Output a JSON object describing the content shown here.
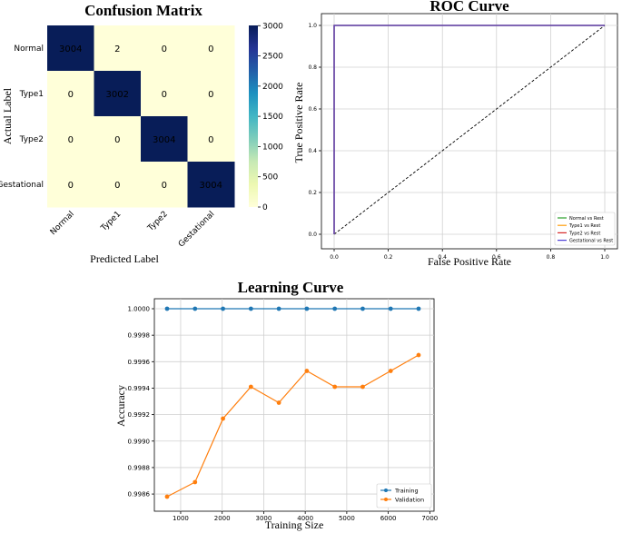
{
  "chart_data": [
    {
      "type": "heatmap",
      "title": "Confusion Matrix",
      "xlabel": "Predicted Label",
      "ylabel": "Actual Label",
      "x_categories": [
        "Normal",
        "Type1",
        "Type2",
        "Gestational"
      ],
      "y_categories": [
        "Normal",
        "Type1",
        "Type2",
        "Gestational"
      ],
      "cell_labels": [
        [
          "3004",
          "2",
          "0",
          "0"
        ],
        [
          "0",
          "3002",
          "0",
          "0"
        ],
        [
          "0",
          "0",
          "3004",
          "0"
        ],
        [
          "0",
          "0",
          "0",
          "3004"
        ]
      ],
      "values": [
        [
          3004,
          2,
          0,
          0
        ],
        [
          0,
          3002,
          0,
          0
        ],
        [
          0,
          0,
          3004,
          0
        ],
        [
          0,
          0,
          0,
          3004
        ]
      ],
      "colorbar": {
        "min": 0,
        "max": 3004,
        "ticks": [
          "0",
          "500",
          "1000",
          "1500",
          "2000",
          "2500",
          "3000"
        ],
        "colormap": "YlGnBu"
      },
      "colors": {
        "low": "#ffffd9",
        "high": "#081d58"
      }
    },
    {
      "type": "line",
      "title": "ROC Curve",
      "xlabel": "False Positive Rate",
      "ylabel": "True Positive Rate",
      "xlim": [
        0,
        1
      ],
      "ylim": [
        0,
        1
      ],
      "xticks": [
        "0.0",
        "0.2",
        "0.4",
        "0.6",
        "0.8",
        "1.0"
      ],
      "yticks": [
        "0.0",
        "0.2",
        "0.4",
        "0.6",
        "0.8",
        "1.0"
      ],
      "grid": true,
      "legend": "bottom-right",
      "series": [
        {
          "name": "Normal vs Rest",
          "color": "#2ca02c",
          "x": [
            0,
            0,
            1
          ],
          "y": [
            0,
            1,
            1
          ]
        },
        {
          "name": "Type1 vs Rest",
          "color": "#ff9f0e",
          "x": [
            0,
            0,
            1
          ],
          "y": [
            0,
            1,
            1
          ]
        },
        {
          "name": "Type2 vs Rest",
          "color": "#d62728",
          "x": [
            0,
            0,
            1
          ],
          "y": [
            0,
            1,
            1
          ]
        },
        {
          "name": "Gestational vs Rest",
          "color": "#4d3fd6",
          "x": [
            0,
            0,
            1
          ],
          "y": [
            0,
            1,
            1
          ]
        }
      ],
      "diagonal": {
        "x": [
          0,
          1
        ],
        "y": [
          0,
          1
        ],
        "style": "dashed",
        "color": "#000000"
      }
    },
    {
      "type": "line",
      "title": "Learning Curve",
      "xlabel": "Training Size",
      "ylabel": "Accuracy",
      "xlim": [
        530,
        7000
      ],
      "ylim": [
        0.99852,
        1.00005
      ],
      "xticks": [
        "1000",
        "2000",
        "3000",
        "4000",
        "5000",
        "6000",
        "7000"
      ],
      "yticks": [
        "0.9986",
        "0.9988",
        "0.9990",
        "0.9992",
        "0.9994",
        "0.9996",
        "0.9998",
        "1.0000"
      ],
      "grid": true,
      "legend": "bottom-right",
      "series": [
        {
          "name": "Training",
          "color": "#1f77b4",
          "x": [
            673,
            1346,
            2019,
            2692,
            3365,
            4038,
            4711,
            5384,
            6057,
            6730
          ],
          "y": [
            1.0,
            1.0,
            1.0,
            1.0,
            1.0,
            1.0,
            1.0,
            1.0,
            1.0,
            1.0
          ]
        },
        {
          "name": "Validation",
          "color": "#ff7f0e",
          "x": [
            673,
            1346,
            2019,
            2692,
            3365,
            4038,
            4711,
            5384,
            6057,
            6730
          ],
          "y": [
            0.99858,
            0.99869,
            0.99917,
            0.99941,
            0.99929,
            0.99953,
            0.99941,
            0.99941,
            0.99953,
            0.99965
          ]
        }
      ]
    }
  ]
}
